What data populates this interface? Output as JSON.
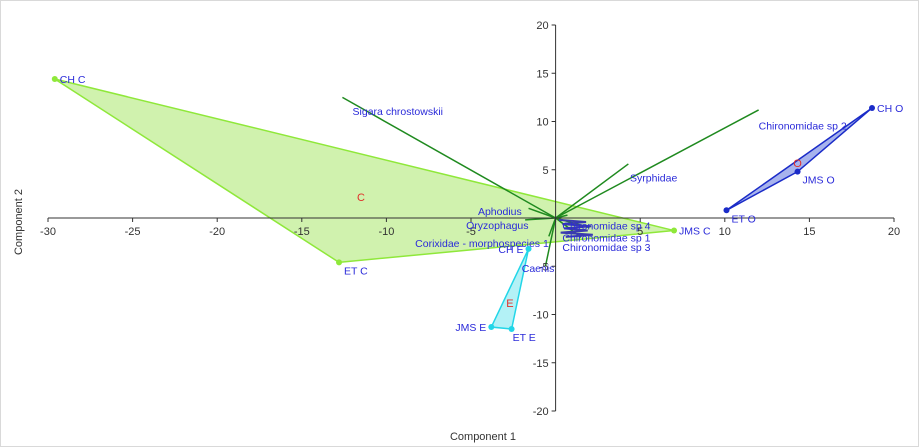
{
  "chart_data": {
    "type": "scatter",
    "xlabel": "Component 1",
    "ylabel": "Component 2",
    "xlim": [
      -30,
      20
    ],
    "ylim": [
      -20,
      20
    ],
    "x_ticks": [
      -30,
      -25,
      -20,
      -15,
      -10,
      -5,
      0,
      5,
      10,
      15,
      20
    ],
    "y_ticks": [
      -20,
      -15,
      -10,
      -5,
      0,
      5,
      10,
      15,
      20
    ],
    "x_tick_labels": [
      "-30",
      "-25",
      "-20",
      "-15",
      "-10",
      "-5",
      "",
      "5",
      "10",
      "15",
      "20"
    ],
    "y_tick_labels": [
      "-20",
      "-15",
      "-10",
      "-5",
      "",
      "5",
      "10",
      "15",
      "20"
    ],
    "grid": false,
    "groups": [
      {
        "label": "C",
        "label_pos": [
          -11.5,
          2.2
        ],
        "color": "#8fe83a",
        "fill": "#c8f0a0",
        "points": [
          {
            "name": "CH C",
            "x": -29.6,
            "y": 14.4
          },
          {
            "name": "ET C",
            "x": -12.8,
            "y": -4.6
          },
          {
            "name": "JMS C",
            "x": 7.0,
            "y": -1.3
          }
        ]
      },
      {
        "label": "E",
        "label_pos": [
          -2.7,
          -8.8
        ],
        "color": "#22d6e8",
        "fill": "#a6eef5",
        "points": [
          {
            "name": "CH E",
            "x": -1.6,
            "y": -3.2
          },
          {
            "name": "JMS E",
            "x": -3.8,
            "y": -11.3
          },
          {
            "name": "ET E",
            "x": -2.6,
            "y": -11.5
          }
        ]
      },
      {
        "label": "O",
        "label_pos": [
          14.3,
          5.7
        ],
        "color": "#1a2bc8",
        "fill": "#98a6ea",
        "points": [
          {
            "name": "CH O",
            "x": 18.7,
            "y": 11.4
          },
          {
            "name": "JMS O",
            "x": 14.3,
            "y": 4.8
          },
          {
            "name": "ET O",
            "x": 10.1,
            "y": 0.8
          }
        ]
      }
    ],
    "loadings": [
      {
        "name": "Sigara chrostowskii",
        "x": -12.6,
        "y": 12.5
      },
      {
        "name": "Chironomidae sp 2",
        "x": 12.0,
        "y": 11.2
      },
      {
        "name": "Syrphidae",
        "x": 4.3,
        "y": 5.6
      },
      {
        "name": "Aphodius",
        "x": -1.6,
        "y": 1.0
      },
      {
        "name": "Oryzophagus",
        "x": -1.8,
        "y": -0.2
      },
      {
        "name": "Chironomidae sp 4",
        "x": 0.7,
        "y": 0.3
      },
      {
        "name": "Corixidae - morphospecies 1",
        "x": -0.4,
        "y": -1.9
      },
      {
        "name": "Chironomidae sp 1",
        "x": 2.0,
        "y": -1.0
      },
      {
        "name": "Chironomidae sp 3",
        "x": 1.5,
        "y": -2.0
      },
      {
        "name": "Caenis",
        "x": -0.6,
        "y": -5.0
      }
    ],
    "loading_labels": [
      {
        "text": "Sigara chrostowskii",
        "x": -12.0,
        "y": 11.1,
        "anchor": "start"
      },
      {
        "text": "Chironomidae sp 2",
        "x": 12.0,
        "y": 9.6,
        "anchor": "start"
      },
      {
        "text": "Syrphidae",
        "x": 4.4,
        "y": 4.2,
        "anchor": "start"
      },
      {
        "text": "Aphodius",
        "x": -2.0,
        "y": 0.7,
        "anchor": "end"
      },
      {
        "text": "Oryzophagus",
        "x": -1.6,
        "y": -0.7,
        "anchor": "end"
      },
      {
        "text": "Chironomidae sp 4",
        "x": 0.4,
        "y": -0.8,
        "anchor": "start"
      },
      {
        "text": "Corixidae - morphospecies 1",
        "x": -0.4,
        "y": -2.6,
        "anchor": "end"
      },
      {
        "text": "Chironomidae sp 1",
        "x": 0.4,
        "y": -2.0,
        "anchor": "start"
      },
      {
        "text": "Chironomidae sp 3",
        "x": 0.4,
        "y": -3.0,
        "anchor": "start"
      },
      {
        "text": "Caenis",
        "x": -2.0,
        "y": -5.2,
        "anchor": "start"
      }
    ],
    "label_overlap_scribble": true,
    "colors": {
      "axis": "#333333",
      "loading_line": "#1f8a1f",
      "text_blue": "#2a2ad9",
      "group_label": "#e0302a"
    }
  }
}
